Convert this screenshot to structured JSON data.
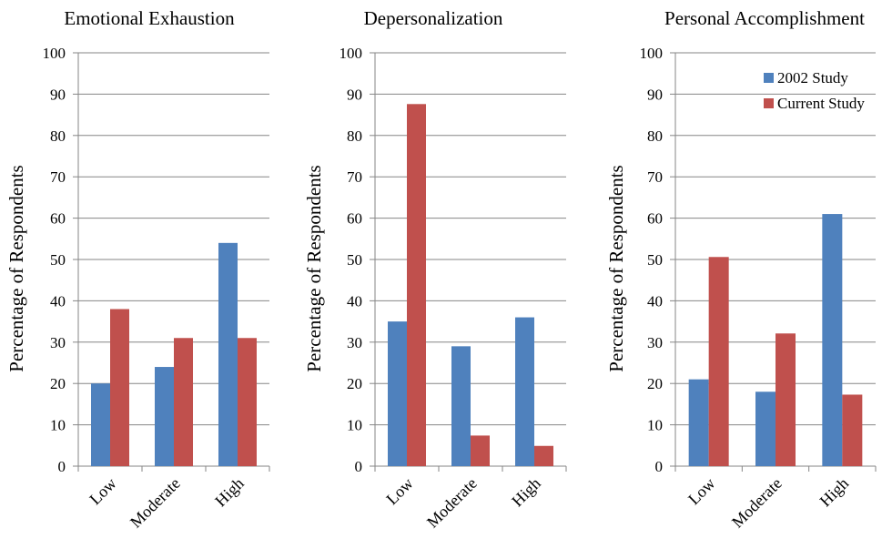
{
  "colors": {
    "series_2002": "#4f81bd",
    "series_current": "#c0504d",
    "grid": "#868686",
    "axis": "#868686"
  },
  "chart_data": [
    {
      "type": "bar",
      "title": "Emotional Exhaustion",
      "ylabel": "Percentage of Respondents",
      "xlabel": "",
      "categories": [
        "Low",
        "Moderate",
        "High"
      ],
      "ylim": [
        0,
        100
      ],
      "yticks": [
        "0",
        "10",
        "20",
        "30",
        "40",
        "50",
        "60",
        "70",
        "80",
        "90",
        "100"
      ],
      "grid": true,
      "series": [
        {
          "name": "2002 Study",
          "values": [
            20,
            24,
            54
          ]
        },
        {
          "name": "Current Study",
          "values": [
            38,
            31,
            31
          ]
        }
      ]
    },
    {
      "type": "bar",
      "title": "Depersonalization",
      "ylabel": "Percentage of Respondents",
      "xlabel": "",
      "categories": [
        "Low",
        "Moderate",
        "High"
      ],
      "ylim": [
        0,
        100
      ],
      "yticks": [
        "0",
        "10",
        "20",
        "30",
        "40",
        "50",
        "60",
        "70",
        "80",
        "90",
        "100"
      ],
      "grid": true,
      "series": [
        {
          "name": "2002 Study",
          "values": [
            35,
            29,
            36
          ]
        },
        {
          "name": "Current Study",
          "values": [
            87.6,
            7.4,
            4.9
          ]
        }
      ]
    },
    {
      "type": "bar",
      "title": "Personal Accomplishment",
      "ylabel": "Percentage of Respondents",
      "xlabel": "",
      "categories": [
        "Low",
        "Moderate",
        "High"
      ],
      "ylim": [
        0,
        100
      ],
      "yticks": [
        "0",
        "10",
        "20",
        "30",
        "40",
        "50",
        "60",
        "70",
        "80",
        "90",
        "100"
      ],
      "grid": true,
      "legend": {
        "position": "top-right",
        "entries": [
          "2002 Study",
          "Current Study"
        ]
      },
      "series": [
        {
          "name": "2002 Study",
          "values": [
            21,
            18,
            61
          ]
        },
        {
          "name": "Current Study",
          "values": [
            50.6,
            32.1,
            17.3
          ]
        }
      ]
    }
  ]
}
